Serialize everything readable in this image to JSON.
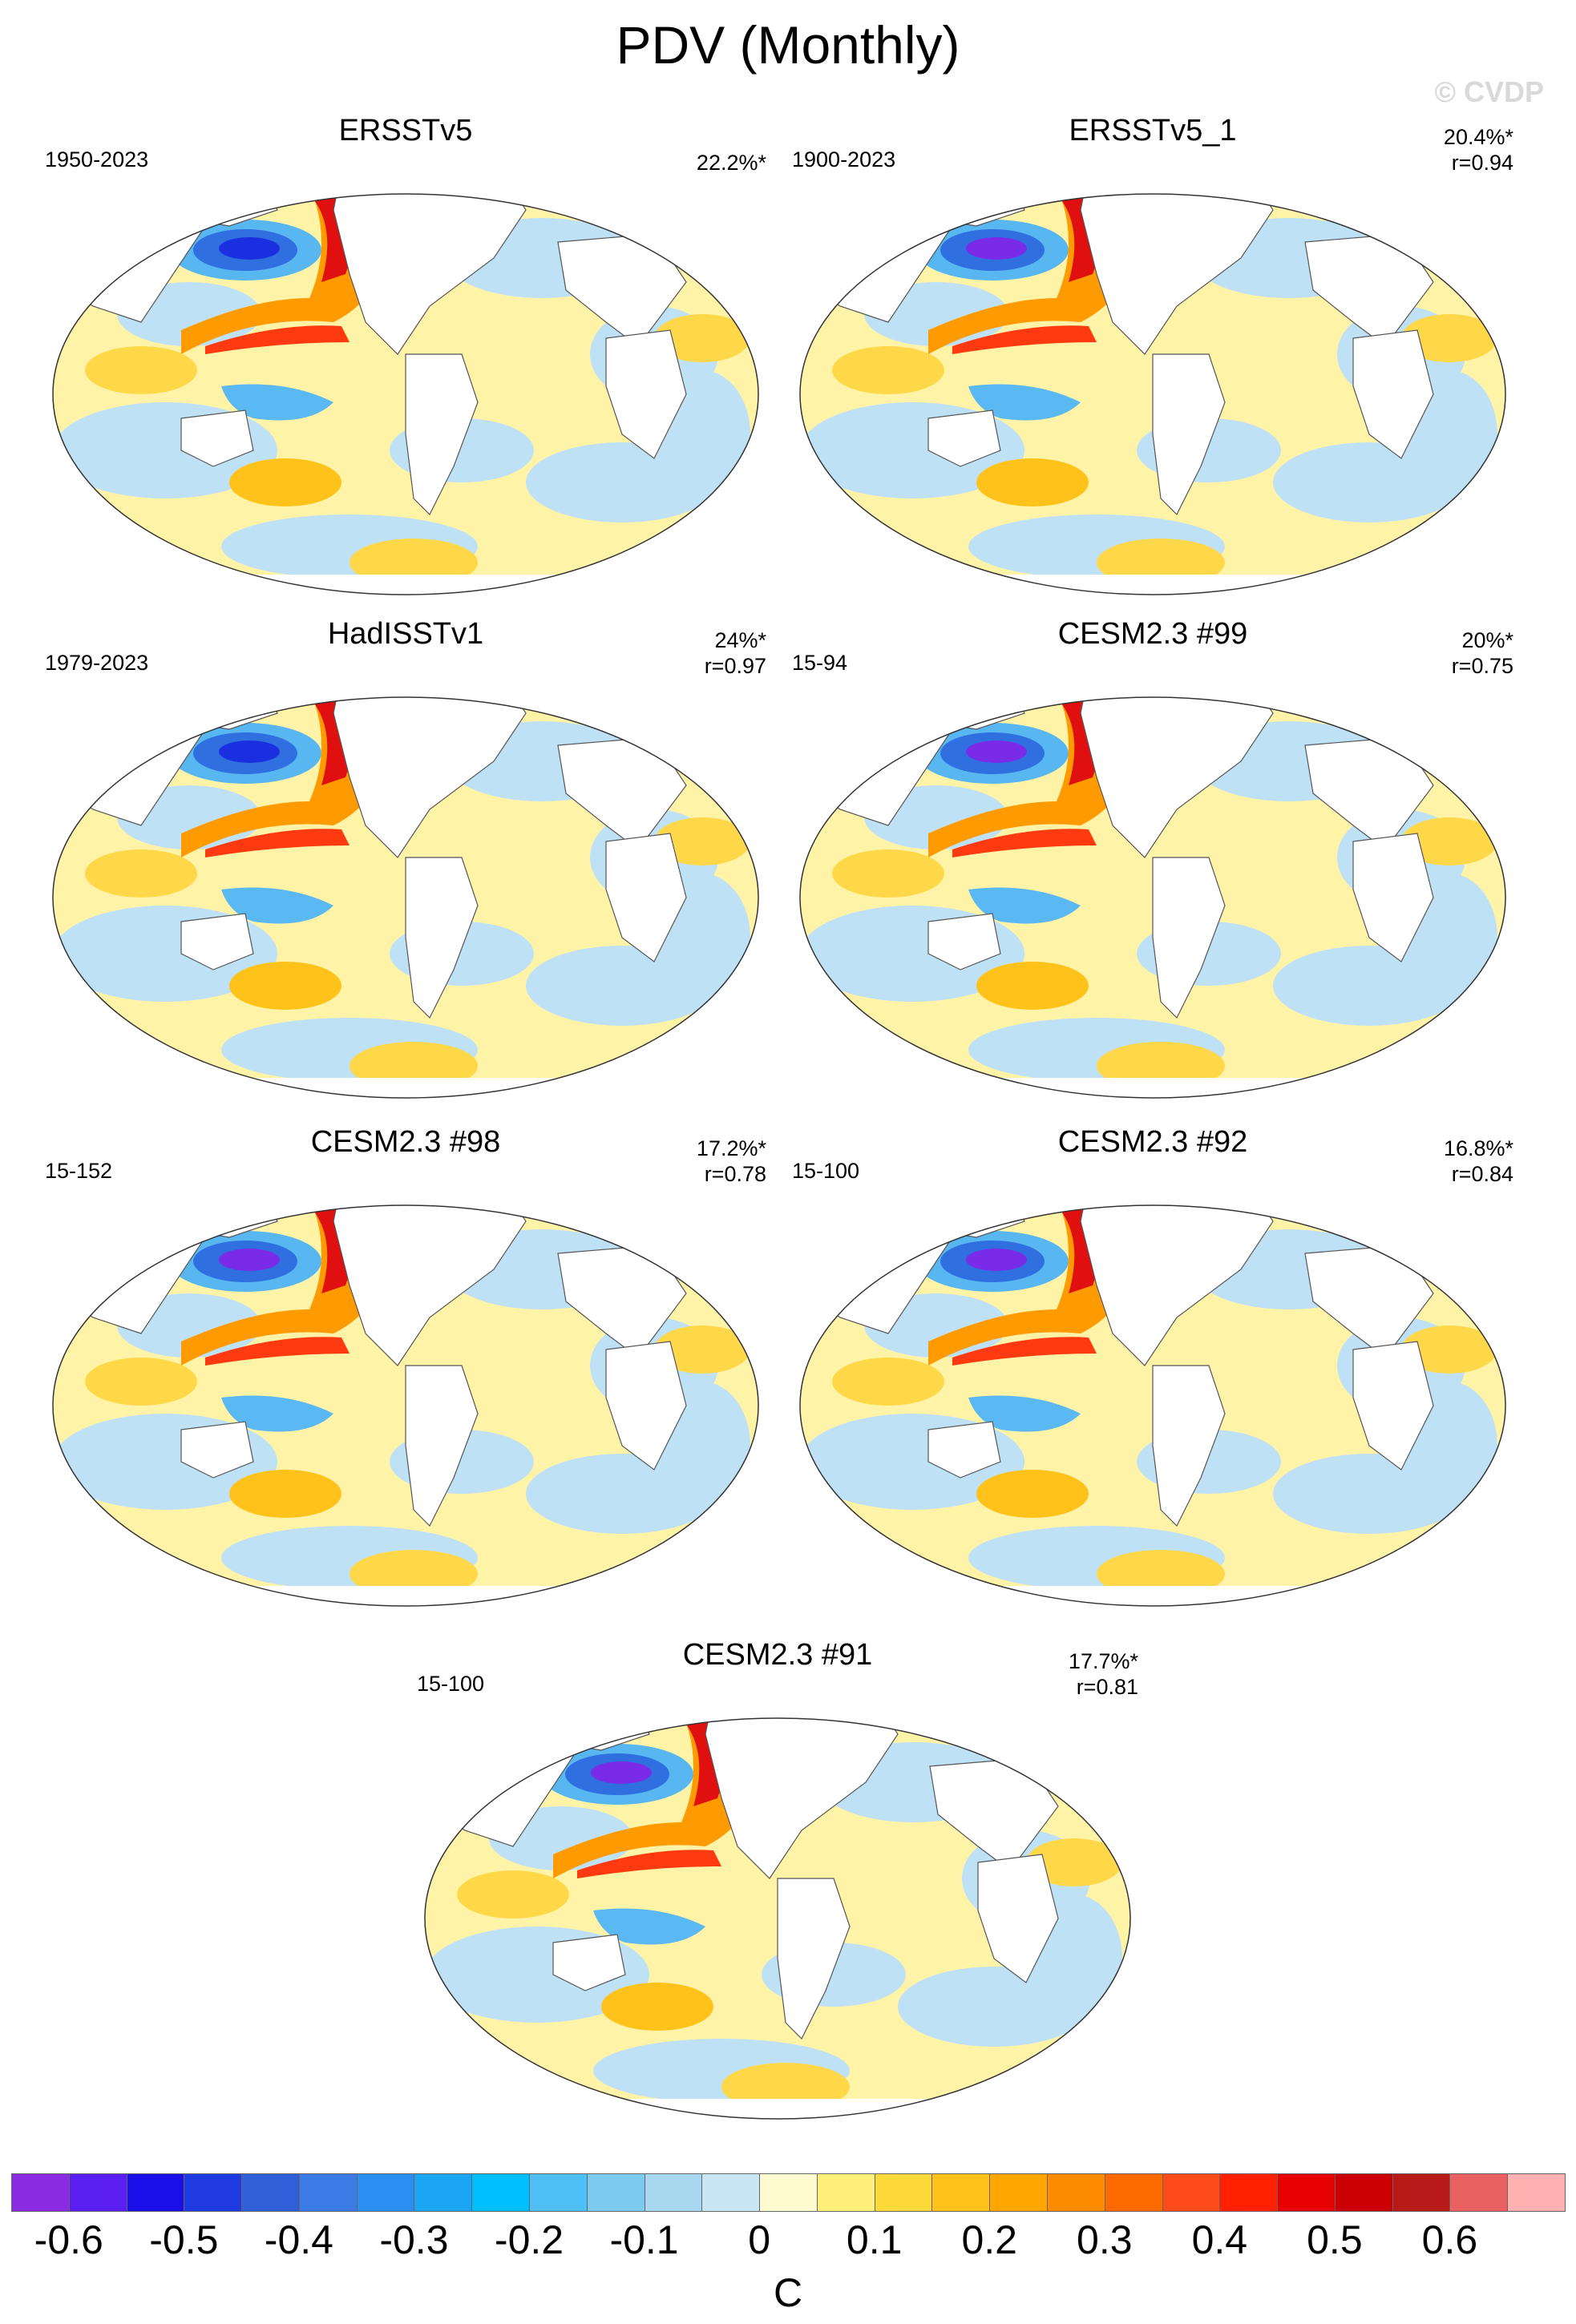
{
  "title": "PDV (Monthly)",
  "watermark": "© CVDP",
  "panels": [
    {
      "title": "ERSSTv5",
      "period": "1950-2023",
      "variance": "22.2%*",
      "corr": ""
    },
    {
      "title": "ERSSTv5_1",
      "period": "1900-2023",
      "variance": "20.4%*",
      "corr": "r=0.94"
    },
    {
      "title": "HadISSTv1",
      "period": "1979-2023",
      "variance": "24%*",
      "corr": "r=0.97"
    },
    {
      "title": "CESM2.3 #99",
      "period": "15-94",
      "variance": "20%*",
      "corr": "r=0.75"
    },
    {
      "title": "CESM2.3 #98",
      "period": "15-152",
      "variance": "17.2%*",
      "corr": "r=0.78"
    },
    {
      "title": "CESM2.3 #92",
      "period": "15-100",
      "variance": "16.8%*",
      "corr": "r=0.84"
    },
    {
      "title": "CESM2.3 #91",
      "period": "15-100",
      "variance": "17.7%*",
      "corr": "r=0.81"
    }
  ],
  "colorbar": {
    "units": "C",
    "ticks": [
      "-0.6",
      "-0.5",
      "-0.4",
      "-0.3",
      "-0.2",
      "-0.1",
      "0",
      "0.1",
      "0.2",
      "0.3",
      "0.4",
      "0.5",
      "0.6"
    ],
    "colors": [
      "#8a2be2",
      "#5a1ef0",
      "#1a0fe8",
      "#1f3ae0",
      "#2f5fd9",
      "#3b7be6",
      "#2b8ef0",
      "#1aa6f5",
      "#00bfff",
      "#4fc0f5",
      "#7ccaf0",
      "#a8d8f0",
      "#c8e6f5",
      "#fffbd0",
      "#fff07a",
      "#ffd83a",
      "#ffc21a",
      "#ffa600",
      "#ff8c00",
      "#ff6a00",
      "#ff4a1a",
      "#ff2000",
      "#e60000",
      "#cc0000",
      "#b81a1a",
      "#e86060",
      "#ffb0b0"
    ]
  }
}
